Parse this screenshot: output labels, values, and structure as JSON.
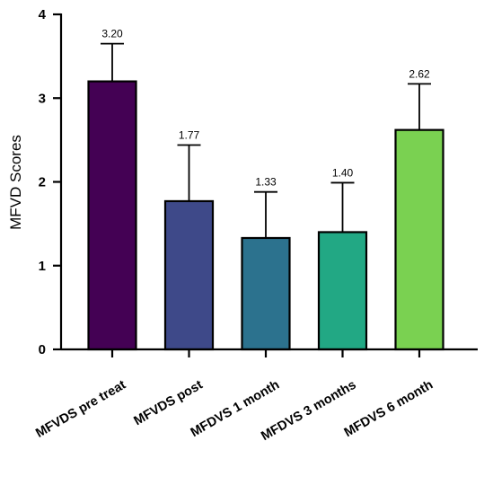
{
  "chart_data": {
    "type": "bar",
    "title": "",
    "xlabel": "",
    "ylabel": "MFVD  Scores",
    "ylim": [
      0,
      4
    ],
    "yticks": [
      "0",
      "1",
      "2",
      "3",
      "4"
    ],
    "categories": [
      "MFVDS pre treat",
      "MFVDS post",
      "MFDVS 1 month",
      "MFDVS 3 months",
      "MFDVS 6 month"
    ],
    "values": [
      3.2,
      1.77,
      1.33,
      1.4,
      2.62
    ],
    "data_labels": [
      "3.20",
      "1.77",
      "1.33",
      "1.40",
      "2.62"
    ],
    "error_upper": [
      3.65,
      2.44,
      1.88,
      1.99,
      3.17
    ],
    "colors": [
      "#440154",
      "#3e4989",
      "#2c728e",
      "#22a884",
      "#7ad151"
    ],
    "grid": false,
    "legend": "none"
  }
}
